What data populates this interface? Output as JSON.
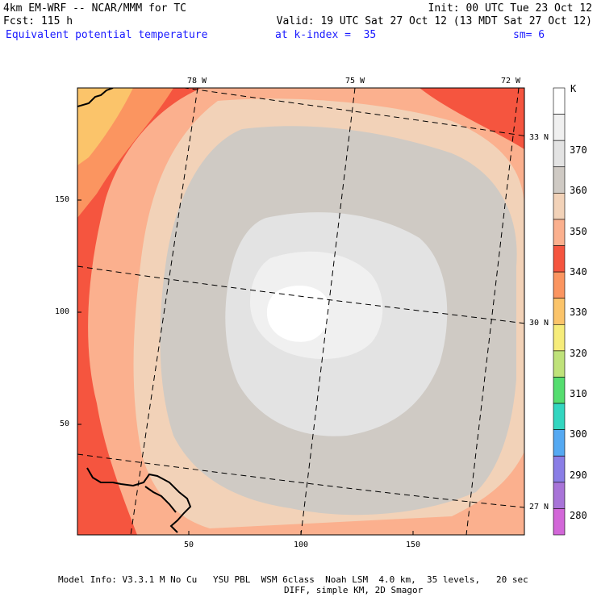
{
  "header": {
    "model_line": "4km EM-WRF -- NCAR/MMM for TC",
    "init_line": "Init: 00 UTC Tue 23 Oct 12",
    "fcst_line": "Fcst: 115 h",
    "valid_line": "Valid: 19 UTC Sat 27 Oct 12 (13 MDT Sat 27 Oct 12)",
    "field_name": "Equivalent potential temperature",
    "level": "at k-index =  35",
    "smooth": "sm= 6"
  },
  "map": {
    "lon_labels": [
      "78 W",
      "75 W",
      "72 W"
    ],
    "lat_labels": [
      "33 N",
      "30 N",
      "27 N"
    ],
    "x_ticks": [
      "50",
      "100",
      "150"
    ],
    "y_ticks": [
      "150",
      "100",
      "50"
    ]
  },
  "colorbar": {
    "unit": "K",
    "labels": [
      "370",
      "360",
      "350",
      "340",
      "330",
      "320",
      "310",
      "300",
      "290",
      "280"
    ],
    "colors": [
      "#ffffff",
      "#f0f0f0",
      "#e3e3e3",
      "#cfcac4",
      "#f2d2b8",
      "#fbb08e",
      "#f5553f",
      "#fb9560",
      "#fbc46a",
      "#f6ec7a",
      "#bfe27a",
      "#55dd6f",
      "#33d6c0",
      "#55a9f2",
      "#8a7ee6",
      "#a874d8",
      "#d267d8"
    ]
  },
  "footer": {
    "line1": "Model Info: V3.3.1 M No Cu   YSU PBL  WSM 6class  Noah LSM  4.0 km,  35 levels,   20 sec",
    "line2": "DIFF, simple KM, 2D Smagor"
  }
}
